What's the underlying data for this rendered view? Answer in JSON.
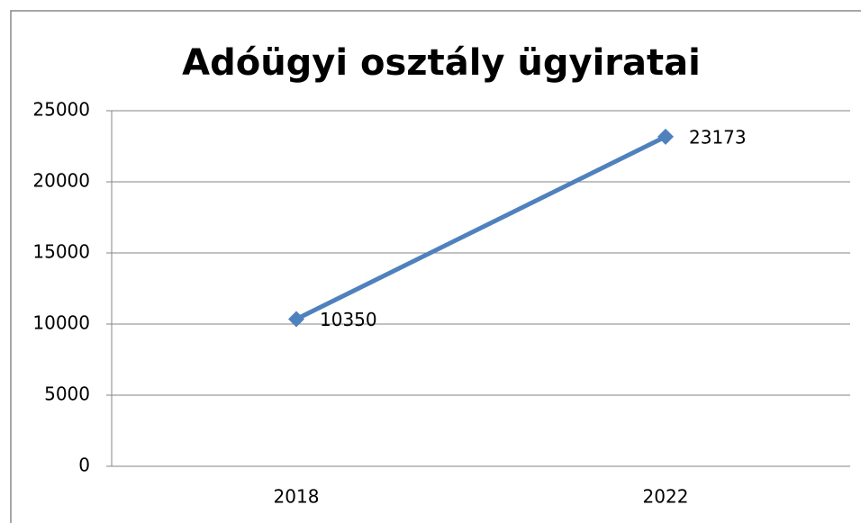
{
  "chart_data": {
    "type": "line",
    "title": "Adóügyi osztály ügyiratai",
    "categories": [
      "2018",
      "2022"
    ],
    "series": [
      {
        "name": "Adóügyi osztály ügyiratai",
        "color": "#4f81bd",
        "values": [
          10350,
          23173
        ]
      }
    ],
    "ylim": [
      0,
      25000
    ],
    "yticks": [
      0,
      5000,
      10000,
      15000,
      20000,
      25000
    ],
    "grid": true
  }
}
